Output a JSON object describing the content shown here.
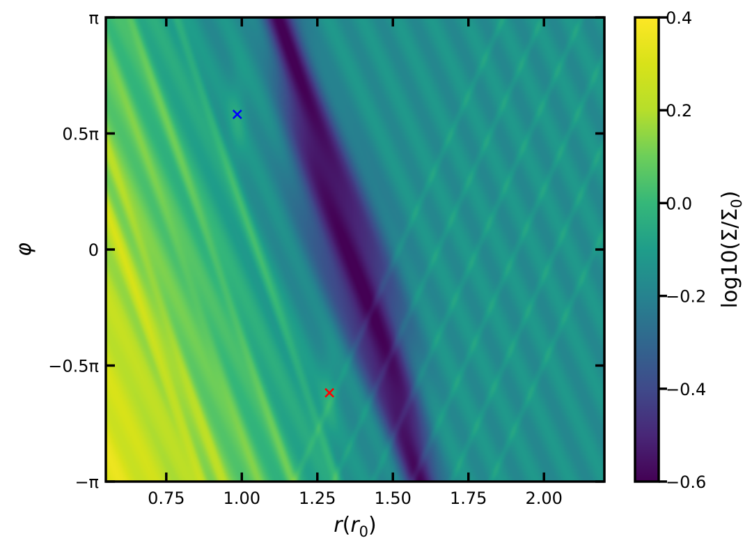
{
  "chart_data": {
    "type": "heatmap",
    "title": "",
    "xlabel": "r(r0)",
    "ylabel": "φ",
    "xlim": [
      0.55,
      2.2
    ],
    "ylim": [
      -3.14159,
      3.14159
    ],
    "x_ticks": [
      {
        "value": 0.75,
        "label": "0.75"
      },
      {
        "value": 1.0,
        "label": "1.00"
      },
      {
        "value": 1.25,
        "label": "1.25"
      },
      {
        "value": 1.5,
        "label": "1.50"
      },
      {
        "value": 1.75,
        "label": "1.75"
      },
      {
        "value": 2.0,
        "label": "2.00"
      }
    ],
    "y_ticks": [
      {
        "value": -3.14159,
        "label": "−π"
      },
      {
        "value": -1.5708,
        "label": "−0.5π"
      },
      {
        "value": 0,
        "label": "0"
      },
      {
        "value": 1.5708,
        "label": "0.5π"
      },
      {
        "value": 3.14159,
        "label": "π"
      }
    ],
    "colorbar": {
      "label": "log10(Σ/Σ0)",
      "label_main": "log10(Σ/Σ",
      "label_sub": "0",
      "label_close": ")",
      "colormap": "viridis",
      "range": [
        -0.6,
        0.4
      ],
      "ticks": [
        {
          "value": 0.4,
          "label": "0.4"
        },
        {
          "value": 0.2,
          "label": "0.2"
        },
        {
          "value": 0.0,
          "label": "0.0"
        },
        {
          "value": -0.2,
          "label": "−0.2"
        },
        {
          "value": -0.4,
          "label": "−0.4"
        },
        {
          "value": -0.6,
          "label": "−0.6"
        }
      ]
    },
    "markers": [
      {
        "name": "blue-x-marker",
        "r": 0.985,
        "phi": 1.83,
        "color": "#0000ff",
        "symbol": "×"
      },
      {
        "name": "red-x-marker",
        "r": 1.29,
        "phi": -1.94,
        "color": "#ff0000",
        "symbol": "×"
      }
    ],
    "field_summary": {
      "inner_bright_bands_r": [
        0.6,
        0.67,
        0.79,
        0.9,
        1.05
      ],
      "gap_center_r_at_phi0": 1.36,
      "gap_min_value": -0.58,
      "outer_disk_value": -0.15
    }
  }
}
